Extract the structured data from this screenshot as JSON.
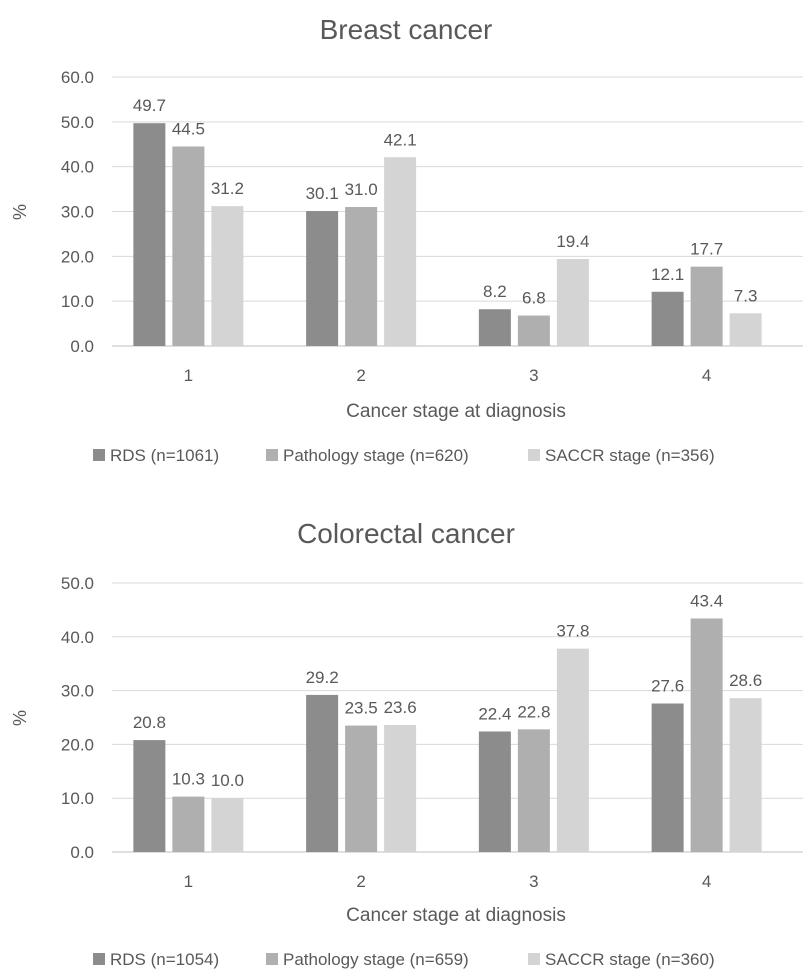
{
  "chart_data": [
    {
      "type": "bar",
      "title": "Breast cancer",
      "xlabel": "Cancer stage at diagnosis",
      "ylabel": "%",
      "ylim": [
        0,
        60
      ],
      "ytick_step": 10,
      "ytick_labels": [
        "0.0",
        "10.0",
        "20.0",
        "30.0",
        "40.0",
        "50.0",
        "60.0"
      ],
      "categories": [
        "1",
        "2",
        "3",
        "4"
      ],
      "grid": true,
      "legend_position": "bottom",
      "series": [
        {
          "name": "RDS (n=1061)",
          "color": "#8c8c8c",
          "values": [
            49.7,
            30.1,
            8.2,
            12.1
          ],
          "labels": [
            "49.7",
            "30.1",
            "8.2",
            "12.1"
          ]
        },
        {
          "name": "Pathology stage (n=620)",
          "color": "#afafaf",
          "values": [
            44.5,
            31.0,
            6.8,
            17.7
          ],
          "labels": [
            "44.5",
            "31.0",
            "6.8",
            "17.7"
          ]
        },
        {
          "name": "SACCR stage (n=356)",
          "color": "#d4d4d4",
          "values": [
            31.2,
            42.1,
            19.4,
            7.3
          ],
          "labels": [
            "31.2",
            "42.1",
            "19.4",
            "7.3"
          ]
        }
      ]
    },
    {
      "type": "bar",
      "title": "Colorectal cancer",
      "xlabel": "Cancer stage at diagnosis",
      "ylabel": "%",
      "ylim": [
        0,
        50
      ],
      "ytick_step": 10,
      "ytick_labels": [
        "0.0",
        "10.0",
        "20.0",
        "30.0",
        "40.0",
        "50.0"
      ],
      "categories": [
        "1",
        "2",
        "3",
        "4"
      ],
      "grid": true,
      "legend_position": "bottom",
      "series": [
        {
          "name": "RDS (n=1054)",
          "color": "#8c8c8c",
          "values": [
            20.8,
            29.2,
            22.4,
            27.6
          ],
          "labels": [
            "20.8",
            "29.2",
            "22.4",
            "27.6"
          ]
        },
        {
          "name": "Pathology stage (n=659)",
          "color": "#afafaf",
          "values": [
            10.3,
            23.5,
            22.8,
            43.4
          ],
          "labels": [
            "10.3",
            "23.5",
            "22.8",
            "43.4"
          ]
        },
        {
          "name": "SACCR stage (n=360)",
          "color": "#d4d4d4",
          "values": [
            10.0,
            23.6,
            37.8,
            28.6
          ],
          "labels": [
            "10.0",
            "23.6",
            "37.8",
            "28.6"
          ]
        }
      ]
    }
  ]
}
